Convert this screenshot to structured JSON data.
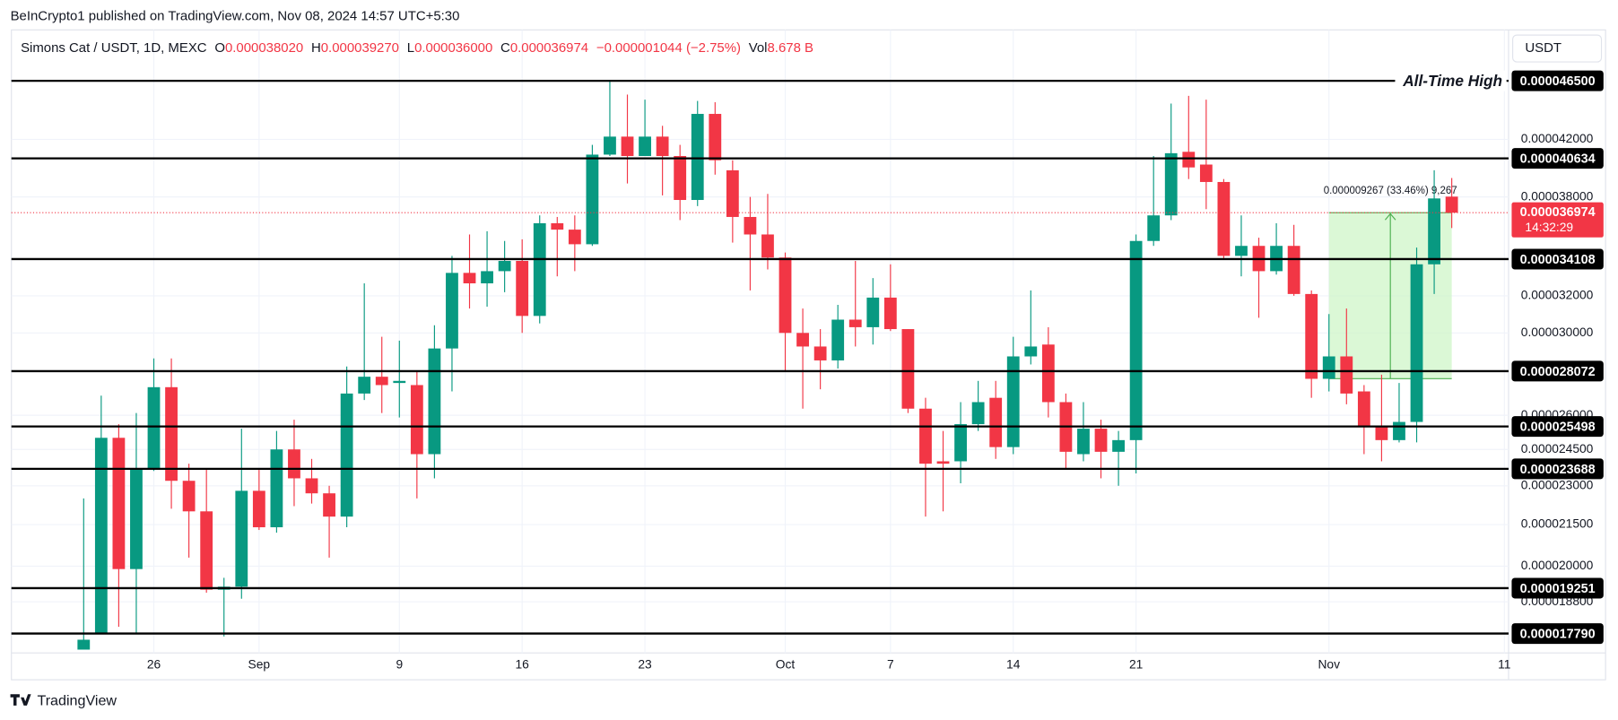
{
  "header": {
    "published": "BeInCrypto1 published on TradingView.com, Nov 08, 2024 14:57 UTC+5:30"
  },
  "currency_button": "USDT",
  "footer": {
    "brand": "TradingView"
  },
  "legend": {
    "symbol": "Simons Cat / USDT, 1D, MEXC",
    "items": [
      {
        "key": "O",
        "value": "0.000038020"
      },
      {
        "key": "H",
        "value": "0.000039270"
      },
      {
        "key": "L",
        "value": "0.000036000"
      },
      {
        "key": "C",
        "value": "0.000036974"
      }
    ],
    "change": "−0.000001044 (−2.75%)",
    "volume_key": "Vol",
    "volume": "8.678 B"
  },
  "chart_data": {
    "type": "candlestick",
    "up_color": "#089981",
    "down_color": "#f23645",
    "log_scale": true,
    "grid": true,
    "xlim": [
      -4.12,
      81.24
    ],
    "xticks": [
      {
        "value": 4,
        "label": "26"
      },
      {
        "value": 10,
        "label": "Sep"
      },
      {
        "value": 18,
        "label": "9"
      },
      {
        "value": 25,
        "label": "16"
      },
      {
        "value": 32,
        "label": "23"
      },
      {
        "value": 40,
        "label": "Oct"
      },
      {
        "value": 46,
        "label": "7"
      },
      {
        "value": 53,
        "label": "14"
      },
      {
        "value": 60,
        "label": "21"
      },
      {
        "value": 71,
        "label": "Nov"
      },
      {
        "value": 81,
        "label": "11"
      }
    ],
    "ylim": [
      1.72e-05,
      5.08e-05
    ],
    "yticks": [
      {
        "value": 4.2e-05,
        "label": "0.000042000"
      },
      {
        "value": 3.8e-05,
        "label": "0.000038000"
      },
      {
        "value": 3.2e-05,
        "label": "0.000032000"
      },
      {
        "value": 3e-05,
        "label": "0.000030000"
      },
      {
        "value": 2.6e-05,
        "label": "0.000026000"
      },
      {
        "value": 2.45e-05,
        "label": "0.000024500"
      },
      {
        "value": 2.3e-05,
        "label": "0.000023000"
      },
      {
        "value": 2.15e-05,
        "label": "0.000021500"
      },
      {
        "value": 2e-05,
        "label": "0.000020000"
      },
      {
        "value": 1.88e-05,
        "label": "0.000018800"
      }
    ],
    "open": [
      1.73e-05,
      1.78e-05,
      2.5e-05,
      1.99e-05,
      2.37e-05,
      2.73e-05,
      2.32e-05,
      2.2e-05,
      1.92e-05,
      1.93e-05,
      2.28e-05,
      2.14e-05,
      2.45e-05,
      2.33e-05,
      2.27e-05,
      2.18e-05,
      2.7e-05,
      2.78e-05,
      2.75e-05,
      2.74e-05,
      2.43e-05,
      2.92e-05,
      3.33e-05,
      3.27e-05,
      3.34e-05,
      3.4e-05,
      3.09e-05,
      3.63e-05,
      3.59e-05,
      3.5e-05,
      4.09e-05,
      4.22e-05,
      4.08e-05,
      4.22e-05,
      4.08e-05,
      3.78e-05,
      4.39e-05,
      3.98e-05,
      3.67e-05,
      3.56e-05,
      3.42e-05,
      3e-05,
      2.93e-05,
      2.86e-05,
      3.07e-05,
      3.03e-05,
      3.19e-05,
      3.02e-05,
      2.63e-05,
      2.4e-05,
      2.4e-05,
      2.56e-05,
      2.68e-05,
      2.46e-05,
      2.88e-05,
      2.94e-05,
      2.66e-05,
      2.43e-05,
      2.54e-05,
      2.44e-05,
      2.49e-05,
      3.52e-05,
      3.68e-05,
      4.11e-05,
      4.02e-05,
      3.9e-05,
      3.43e-05,
      3.49e-05,
      3.34e-05,
      3.49e-05,
      3.21e-05,
      2.77e-05,
      2.88e-05,
      2.71e-05,
      2.55e-05,
      2.49e-05,
      2.57e-05,
      3.38e-05,
      3.802e-05
    ],
    "high": [
      2.25e-05,
      2.69e-05,
      2.56e-05,
      2.61e-05,
      2.87e-05,
      2.87e-05,
      2.39e-05,
      2.37e-05,
      1.96e-05,
      2.54e-05,
      2.37e-05,
      2.53e-05,
      2.58e-05,
      2.41e-05,
      2.3e-05,
      2.83e-05,
      3.27e-05,
      2.98e-05,
      2.96e-05,
      2.81e-05,
      3.04e-05,
      3.43e-05,
      3.56e-05,
      3.58e-05,
      3.52e-05,
      3.53e-05,
      3.68e-05,
      3.67e-05,
      3.68e-05,
      4.16e-05,
      4.65e-05,
      4.54e-05,
      4.5e-05,
      4.3e-05,
      4.16e-05,
      4.49e-05,
      4.48e-05,
      4.05e-05,
      3.8e-05,
      3.82e-05,
      3.45e-05,
      3.13e-05,
      3.02e-05,
      3.15e-05,
      3.4e-05,
      3.3e-05,
      3.38e-05,
      3.02e-05,
      2.68e-05,
      2.53e-05,
      2.66e-05,
      2.76e-05,
      2.76e-05,
      2.98e-05,
      3.23e-05,
      3.03e-05,
      2.7e-05,
      2.66e-05,
      2.58e-05,
      2.53e-05,
      3.56e-05,
      4.08e-05,
      4.47e-05,
      4.53e-05,
      4.5e-05,
      3.92e-05,
      3.68e-05,
      3.54e-05,
      3.63e-05,
      3.62e-05,
      3.23e-05,
      3.1e-05,
      3.13e-05,
      2.74e-05,
      2.79e-05,
      2.75e-05,
      3.48e-05,
      3.98e-05,
      3.927e-05
    ],
    "low": [
      1.73e-05,
      1.78e-05,
      1.8e-05,
      1.78e-05,
      2.36e-05,
      2.21e-05,
      2.03e-05,
      1.91e-05,
      1.77e-05,
      1.89e-05,
      2.13e-05,
      2.12e-05,
      2.22e-05,
      2.23e-05,
      2.03e-05,
      2.14e-05,
      2.67e-05,
      2.61e-05,
      2.59e-05,
      2.25e-05,
      2.33e-05,
      2.71e-05,
      3.13e-05,
      3.14e-05,
      3.22e-05,
      3e-05,
      3.05e-05,
      3.31e-05,
      3.34e-05,
      3.49e-05,
      4.08e-05,
      3.89e-05,
      4.08e-05,
      3.81e-05,
      3.65e-05,
      3.74e-05,
      3.95e-05,
      3.51e-05,
      3.23e-05,
      3.35e-05,
      2.81e-05,
      2.63e-05,
      2.72e-05,
      2.82e-05,
      2.93e-05,
      2.94e-05,
      3.01e-05,
      2.61e-05,
      2.18e-05,
      2.2e-05,
      2.31e-05,
      2.53e-05,
      2.41e-05,
      2.43e-05,
      2.84e-05,
      2.59e-05,
      2.37e-05,
      2.4e-05,
      2.33e-05,
      2.3e-05,
      2.35e-05,
      3.49e-05,
      3.65e-05,
      3.92e-05,
      3.72e-05,
      3.41e-05,
      3.31e-05,
      3.08e-05,
      3.32e-05,
      3.2e-05,
      2.68e-05,
      2.71e-05,
      2.65e-05,
      2.43e-05,
      2.4e-05,
      2.48e-05,
      2.48e-05,
      3.21e-05,
      3.6e-05
    ],
    "close": [
      1.76e-05,
      2.5e-05,
      1.99e-05,
      2.37e-05,
      2.73e-05,
      2.32e-05,
      2.2e-05,
      1.92e-05,
      1.93e-05,
      2.28e-05,
      2.14e-05,
      2.45e-05,
      2.33e-05,
      2.27e-05,
      2.18e-05,
      2.7e-05,
      2.78e-05,
      2.74e-05,
      2.76e-05,
      2.43e-05,
      2.92e-05,
      3.33e-05,
      3.27e-05,
      3.34e-05,
      3.4e-05,
      3.09e-05,
      3.63e-05,
      3.59e-05,
      3.5e-05,
      4.09e-05,
      4.22e-05,
      4.08e-05,
      4.22e-05,
      4.08e-05,
      3.78e-05,
      4.39e-05,
      4.05e-05,
      3.67e-05,
      3.56e-05,
      3.42e-05,
      3e-05,
      2.93e-05,
      2.86e-05,
      3.07e-05,
      3.03e-05,
      3.19e-05,
      3.02e-05,
      2.63e-05,
      2.39e-05,
      2.39e-05,
      2.56e-05,
      2.66e-05,
      2.46e-05,
      2.88e-05,
      2.93e-05,
      2.66e-05,
      2.44e-05,
      2.54e-05,
      2.44e-05,
      2.49e-05,
      3.52e-05,
      3.68e-05,
      4.1e-05,
      4e-05,
      3.9e-05,
      3.43e-05,
      3.49e-05,
      3.34e-05,
      3.49e-05,
      3.21e-05,
      2.77e-05,
      2.88e-05,
      2.7e-05,
      2.55e-05,
      2.49e-05,
      2.57e-05,
      3.38e-05,
      3.79e-05,
      3.6974e-05
    ],
    "levels": [
      {
        "value": 4.65e-05,
        "label": "0.000046500",
        "note": "All-Time High"
      },
      {
        "value": 4.0634e-05,
        "label": "0.000040634"
      },
      {
        "value": 3.4108e-05,
        "label": "0.000034108"
      },
      {
        "value": 2.8072e-05,
        "label": "0.000028072"
      },
      {
        "value": 2.5498e-05,
        "label": "0.000025498"
      },
      {
        "value": 2.3688e-05,
        "label": "0.000023688"
      },
      {
        "value": 1.9251e-05,
        "label": "0.000019251"
      },
      {
        "value": 1.779e-05,
        "label": "0.000017790"
      }
    ],
    "level_color": "#000000",
    "current_price": {
      "value": 3.6974e-05,
      "label": "0.000036974",
      "countdown": "14:32:29",
      "color": "#f23645"
    },
    "measure": {
      "label": "0.000009267 (33.46%) 9,267",
      "start": 71,
      "end": 78,
      "from": 2.7707e-05,
      "to": 3.6974e-05,
      "color": "#4caf50"
    }
  }
}
